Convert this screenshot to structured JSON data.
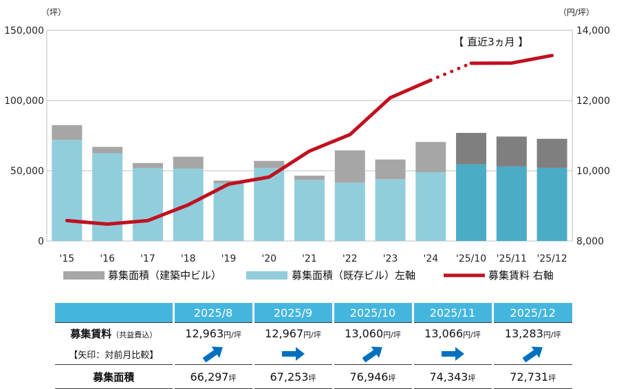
{
  "chart_data": {
    "type": "bar+line",
    "categories": [
      "'15",
      "'16",
      "'17",
      "'18",
      "'19",
      "'20",
      "'21",
      "'22",
      "'23",
      "'24",
      "'25/10",
      "'25/11",
      "'25/12"
    ],
    "series": [
      {
        "name": "募集面積（既存ビル）左軸",
        "axis": "left",
        "kind": "bar-stack-bottom",
        "values": [
          72000,
          62500,
          52000,
          51500,
          41000,
          52000,
          43500,
          41500,
          44000,
          49000,
          54500,
          53000,
          52000
        ]
      },
      {
        "name": "募集面積（建築中ビル）",
        "axis": "left",
        "kind": "bar-stack-top",
        "values": [
          10500,
          4500,
          3500,
          8500,
          2000,
          5000,
          3000,
          23000,
          14000,
          21500,
          22446,
          21343,
          20731
        ]
      },
      {
        "name": "募集賃料 右軸",
        "axis": "right",
        "kind": "line",
        "values": [
          8580,
          8480,
          8580,
          9030,
          9620,
          9820,
          10560,
          11030,
          12080,
          12580,
          13060,
          13066,
          13283
        ]
      }
    ],
    "left_axis": {
      "unit": "（坪）",
      "ylim": [
        0,
        150000
      ],
      "ticks": [
        "0",
        "50,000",
        "100,000",
        "150,000"
      ],
      "tick_values": [
        0,
        50000,
        100000,
        150000
      ]
    },
    "right_axis": {
      "unit": "（円/坪）",
      "ylim": [
        8000,
        14000
      ],
      "ticks": [
        "8,000",
        "10,000",
        "12,000",
        "14,000"
      ],
      "tick_values": [
        8000,
        10000,
        12000,
        14000
      ]
    },
    "annotation": "【 直近3ヵ月 】",
    "legend": [
      {
        "label": "募集面積（建築中ビル）",
        "color": "#a6a6a6"
      },
      {
        "label": "募集面積（既存ビル）左軸",
        "color": "#92cddc"
      },
      {
        "label": "募集賃料 右軸",
        "color": "#c0111f"
      }
    ],
    "colors": {
      "existing": "#92cddc",
      "construction": "#a6a6a6",
      "existing_recent": "#4bacc6",
      "construction_recent": "#7f7f7f",
      "line": "#c0111f",
      "grid": "#bfbfbf"
    }
  },
  "table": {
    "months": [
      "2025/8",
      "2025/9",
      "2025/10",
      "2025/11",
      "2025/12"
    ],
    "rent_label": "募集賃料",
    "rent_label_note": "（共益費込）",
    "arrow_label": "【矢印：対前月比較】",
    "area_label": "募集面積",
    "rent_values": [
      "12,963",
      "12,967",
      "13,060",
      "13,066",
      "13,283"
    ],
    "rent_unit": "円/坪",
    "arrows": [
      "up",
      "flat",
      "up",
      "flat",
      "up"
    ],
    "area_values": [
      "66,297",
      "67,253",
      "76,946",
      "74,343",
      "72,731"
    ],
    "area_unit": "坪",
    "header_color": "#44b6dd",
    "arrow_color": "#0070c0"
  }
}
